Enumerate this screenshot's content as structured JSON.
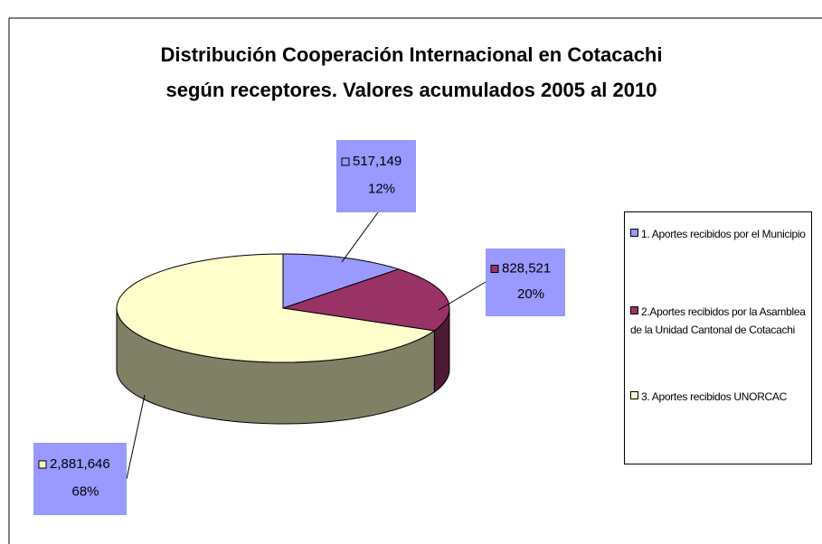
{
  "chart_data": {
    "type": "pie3d",
    "title": [
      "Distribución Cooperación Internacional en Cotacachi",
      "según receptores. Valores acumulados 2005 al 2010"
    ],
    "categories": [
      "1. Aportes recibidos por el Municipio",
      "2.Aportes recibidos por la Asamblea de la Unidad Cantonal de Cotacachi",
      "3. Aportes recibidos UNORCAC"
    ],
    "values": [
      517149,
      828521,
      2881646
    ],
    "value_labels": [
      "517,149",
      "828,521",
      "2,881,646"
    ],
    "percent_labels": [
      "12%",
      "20%",
      "68%"
    ],
    "colors": [
      "#9999ff",
      "#993366",
      "#ffffcc"
    ],
    "side_colors": [
      "#4d4d80",
      "#4d1a33",
      "#808066"
    ],
    "legend": "right"
  }
}
